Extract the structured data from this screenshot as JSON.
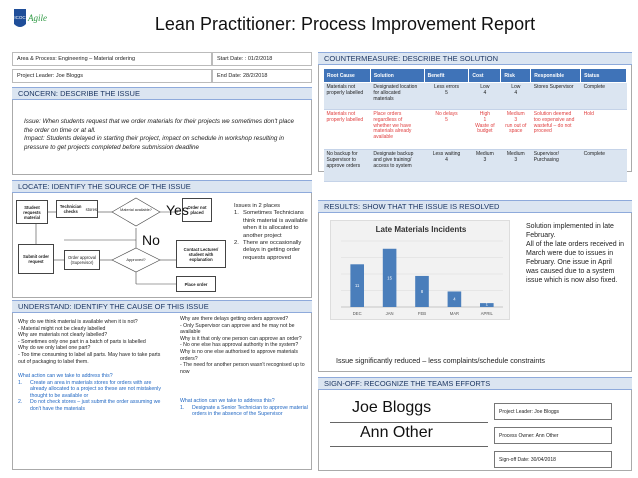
{
  "header": {
    "title": "Lean Practitioner: Process Improvement Report",
    "logo_text": "Agile",
    "logo_badge": "ICOC"
  },
  "info": {
    "area": "Area & Process: Engineering – Material ordering",
    "start": "Start Date: : 01/2/2018",
    "leader": "Project Leader: Joe Bloggs",
    "end": "End Date: 28/2/2018"
  },
  "concern": {
    "heading": "CONCERN: DESCRIBE THE ISSUE",
    "text": "Issue: When students request that we order materials for their projects we sometimes don't place the order on time or at all.\nImpact: Students delayed in starting their project, impact on schedule in workshop resulting in pressure to get projects completed before submission deadline"
  },
  "locate": {
    "heading": "LOCATE: IDENTIFY THE SOURCE OF THE ISSUE",
    "boxes": {
      "student": "Student requests material",
      "technician": "Technician checks",
      "stores": "stores",
      "material_q": "Material available?",
      "order_not_placed": "Order not placed",
      "submit": "Submit order request",
      "approval": "Order approval (Supervisor)",
      "approved_q": "Approved?",
      "contact": "Contact Lecturer/ student with explanation",
      "place": "Place order"
    },
    "yes": "Yes",
    "no": "No",
    "issues_intro": "Issues in 2 places",
    "issues": [
      "Sometimes Technicians think material is available when it is allocated to another project",
      "There are occasionally delays in getting order requests approved"
    ]
  },
  "understand": {
    "heading": "UNDERSTAND: IDENTIFY THE CAUSE OF THIS ISSUE",
    "left": "Why do we think material is available when it is not?\n  - Material might not be clearly labelled\nWhy are materials not clearly labelled?\n  - Sometimes only one part in a batch of parts is labelled\nWhy do we only label one part?\n  - Too time consuming to label all parts. May have to take parts out of packaging to label them.",
    "left_action_title": "What action can we take to address this?",
    "left_actions": [
      "Create an area in materials stores for orders with are already allocated to a project so these are not mistakenly thought to be available          or",
      "Do not check stores – just submit the order assuming we don't have the materials"
    ],
    "right": "Why are there delays getting orders approved?\n  - Only Supervisor can approve and he may not be available\nWhy is it that only one person can approve an order?\n  - No one else has approval authority in the system?\nWhy is no one else authorised to approve materials orders?\n  - The need for another person wasn't recognised up to now",
    "right_action_title": "What action can we take to address this?",
    "right_actions": [
      "Designate a Senior Technician to approve material orders in the absence of the Supervisor"
    ]
  },
  "countermeasure": {
    "heading": "COUNTERMEASURE: DESCRIBE THE SOLUTION",
    "columns": [
      "Root Cause",
      "Solution",
      "Benefit",
      "Cost",
      "Risk",
      "Responsible",
      "Status"
    ],
    "rows": [
      [
        "Materials not properly labelled",
        "Designated location for allocated materials",
        "Less errors\n5",
        "Low\n4",
        "Low\n4",
        "Stores Supervisor",
        "Complete"
      ],
      [
        "Materials not properly labelled",
        "Place orders regardless of whether we have materials already available",
        "No delays\n5",
        "High\n1\nWaste of budget",
        "Medium\n3\nrun out of space",
        "Solution deemed too expensive and wasteful – do not proceed",
        "Hold"
      ],
      [
        "No backup for Supervisor to approve orders",
        "Designate backup and give training/ access to system",
        "Less waiting\n4",
        "Medium\n3",
        "Medium\n3",
        "Supervisor/ Purchasing",
        "Complete"
      ]
    ]
  },
  "results": {
    "heading": "RESULTS: SHOW THAT THE ISSUE IS RESOLVED",
    "note": "Solution implemented in late February.\nAll of the late orders received in March were due to issues in February. One issue in April was caused due to a system issue which is now also fixed.",
    "summary": "Issue significantly reduced – less complaints/schedule constraints"
  },
  "chart_data": {
    "type": "bar",
    "title": "Late Materials Incidents",
    "categories": [
      "DEC",
      "JAN",
      "FEB",
      "MAR",
      "APRIL"
    ],
    "values": [
      11,
      15,
      8,
      4,
      1
    ],
    "ylim": [
      0,
      17
    ],
    "bar_color": "#4a7ebb",
    "grid": true
  },
  "signoff": {
    "heading": "SIGN-OFF: RECOGNIZE THE TEAMS EFFORTS",
    "sig1": "Joe Bloggs",
    "sig2": "Ann Other",
    "leader": "Project Leader: Joe Bloggs",
    "owner": "Process Owner: Ann Other",
    "date": "Sign-off Date: 30/04/2018"
  }
}
